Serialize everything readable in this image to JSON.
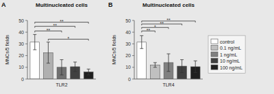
{
  "chart_data": [
    {
      "type": "bar",
      "panel_label": "A",
      "title": "Multinucleated cells",
      "xlabel": "TLR2",
      "ylabel": "MNCs/5 fields",
      "categories": [
        null,
        null,
        null,
        null,
        null
      ],
      "values": [
        31.5,
        22.5,
        10.0,
        10.5,
        6.0
      ],
      "errors": [
        6.5,
        9.0,
        6.5,
        4.0,
        2.5
      ],
      "colors": [
        "#ffffff",
        "#b0b0b0",
        "#707070",
        "#404040",
        "#202020"
      ],
      "ylim": [
        0,
        50
      ],
      "yticks": [
        0,
        10,
        20,
        30,
        40,
        50
      ],
      "annotations": [
        {
          "x1": 0,
          "x2": 2,
          "y": 41,
          "label": "**"
        },
        {
          "x1": 0,
          "x2": 3,
          "y": 45,
          "label": "**"
        },
        {
          "x1": 0,
          "x2": 4,
          "y": 48.5,
          "label": "**"
        },
        {
          "x1": 1,
          "x2": 4,
          "y": 34,
          "label": "*"
        }
      ]
    },
    {
      "type": "bar",
      "panel_label": "B",
      "title": "Multinucleated cells",
      "xlabel": "TLR4",
      "ylabel": "MNCs/5 fields",
      "categories": [
        null,
        null,
        null,
        null,
        null
      ],
      "values": [
        31.5,
        12.0,
        14.0,
        11.0,
        10.5
      ],
      "errors": [
        5.5,
        2.0,
        7.5,
        5.5,
        5.0
      ],
      "colors": [
        "#ffffff",
        "#c0c0c0",
        "#808080",
        "#404040",
        "#202020"
      ],
      "ylim": [
        0,
        50
      ],
      "yticks": [
        0,
        10,
        20,
        30,
        40,
        50
      ],
      "annotations": [
        {
          "x1": 0,
          "x2": 1,
          "y": 41,
          "label": "**"
        },
        {
          "x1": 0,
          "x2": 2,
          "y": 44,
          "label": "*"
        },
        {
          "x1": 0,
          "x2": 3,
          "y": 47,
          "label": "**"
        },
        {
          "x1": 0,
          "x2": 4,
          "y": 49.5,
          "label": "**"
        }
      ],
      "legend": "right",
      "legend_labels": [
        "control",
        "0.1 ng/mL",
        "1 ng/mL",
        "10 ng/mL",
        "100 ng/mL"
      ],
      "legend_colors": [
        "#ffffff",
        "#c0c0c0",
        "#808080",
        "#404040",
        "#202020"
      ]
    }
  ]
}
